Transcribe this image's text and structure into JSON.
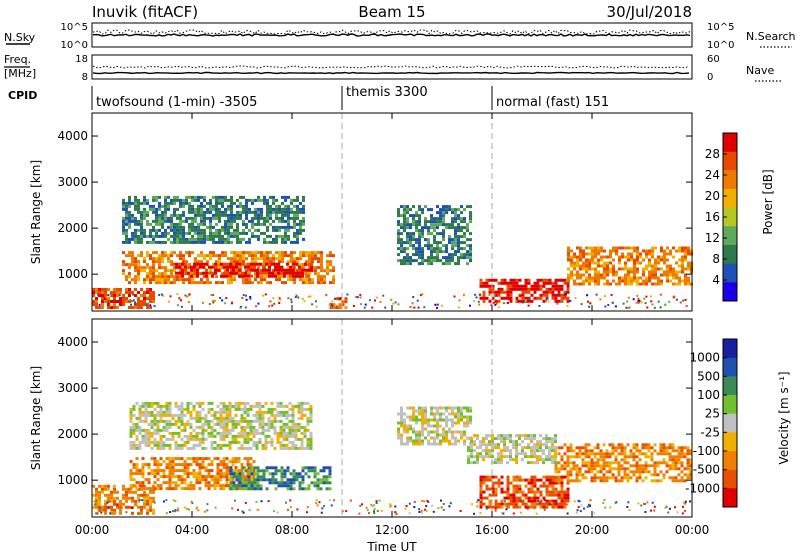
{
  "header": {
    "station": "Inuvik (fitACF)",
    "beam": "Beam 15",
    "date": "30/Jul/2018"
  },
  "summary_panels": {
    "nsky": {
      "label": "N.Sky",
      "ticks_left": [
        "10^5",
        "10^0"
      ],
      "ticks_right": [
        "10^5",
        "10^0"
      ],
      "legend_label": "N.Search"
    },
    "freq": {
      "label_top": "Freq.",
      "label_unit": "[MHz]",
      "ticks_left": [
        "18",
        "8"
      ],
      "ticks_right": [
        "60",
        "0"
      ],
      "legend_label": "Nave"
    },
    "cpid": {
      "label": "CPID",
      "segments": [
        {
          "name": "twofsound (1-min) -3505",
          "start_hour": 0,
          "end_hour": 10
        },
        {
          "name": "themis 3300",
          "start_hour": 10,
          "end_hour": 16
        },
        {
          "name": "normal (fast) 151",
          "start_hour": 16,
          "end_hour": 24
        }
      ]
    }
  },
  "xaxis": {
    "label": "Time UT",
    "tick_labels": [
      "00:00",
      "04:00",
      "08:00",
      "12:00",
      "16:00",
      "20:00",
      "00:00"
    ]
  },
  "colors": {
    "power": [
      "#1a00e6",
      "#1e50b8",
      "#2e7a4a",
      "#5fa85f",
      "#b5c820",
      "#f0b000",
      "#f07a00",
      "#e84a00",
      "#e00000"
    ],
    "velocity": [
      "#e00000",
      "#e85000",
      "#f08000",
      "#f0b000",
      "#c0c0c0",
      "#70c030",
      "#3a8a5a",
      "#2050b0",
      "#1820a0"
    ]
  },
  "chart_data": [
    {
      "type": "heatmap",
      "name": "power",
      "xlabel": "",
      "ylabel": "Slant Range [km]",
      "xlim": [
        0,
        24
      ],
      "ylim": [
        200,
        4500
      ],
      "yticks": [
        1000,
        2000,
        3000,
        4000
      ],
      "colorbar": {
        "label": "Power [dB]",
        "ticks": [
          "28",
          "24",
          "20",
          "16",
          "12",
          "8",
          "4"
        ]
      },
      "regions": [
        {
          "x": [
            0,
            2.5
          ],
          "y": [
            300,
            700
          ],
          "level": 7
        },
        {
          "x": [
            1.2,
            9.7
          ],
          "y": [
            800,
            1500
          ],
          "level": 6
        },
        {
          "x": [
            3.2,
            8.8
          ],
          "y": [
            950,
            1250
          ],
          "level": 8
        },
        {
          "x": [
            1.2,
            8.5
          ],
          "y": [
            1700,
            2700
          ],
          "level": 2
        },
        {
          "x": [
            12.2,
            15.2
          ],
          "y": [
            1200,
            2500
          ],
          "level": 2
        },
        {
          "x": [
            15.5,
            19
          ],
          "y": [
            400,
            900
          ],
          "level": 8
        },
        {
          "x": [
            19,
            24
          ],
          "y": [
            800,
            1600
          ],
          "level": 6
        },
        {
          "x": [
            9.5,
            10.2
          ],
          "y": [
            300,
            500
          ],
          "level": 7
        }
      ]
    },
    {
      "type": "heatmap",
      "name": "velocity",
      "xlabel": "Time UT",
      "ylabel": "Slant Range [km]",
      "xlim": [
        0,
        24
      ],
      "ylim": [
        200,
        4500
      ],
      "yticks": [
        1000,
        2000,
        3000,
        4000
      ],
      "colorbar": {
        "label": "Velocity [m s⁻¹]",
        "ticks": [
          "1000",
          "500",
          "100",
          "25",
          "-25",
          "-100",
          "-500",
          "-1000"
        ]
      },
      "regions": [
        {
          "x": [
            0,
            2.5
          ],
          "y": [
            300,
            900
          ],
          "level": 2
        },
        {
          "x": [
            1.5,
            6.5
          ],
          "y": [
            800,
            1500
          ],
          "level": 2
        },
        {
          "x": [
            5.5,
            9.5
          ],
          "y": [
            800,
            1300
          ],
          "level": 6
        },
        {
          "x": [
            1.5,
            8.8
          ],
          "y": [
            1700,
            2700
          ],
          "level": 4
        },
        {
          "x": [
            12.2,
            15.2
          ],
          "y": [
            1800,
            2600
          ],
          "level": 4
        },
        {
          "x": [
            15.5,
            19
          ],
          "y": [
            400,
            1100
          ],
          "level": 1
        },
        {
          "x": [
            18.5,
            24
          ],
          "y": [
            1000,
            1800
          ],
          "level": 2
        },
        {
          "x": [
            15,
            18.5
          ],
          "y": [
            1400,
            2000
          ],
          "level": 4
        }
      ]
    }
  ]
}
